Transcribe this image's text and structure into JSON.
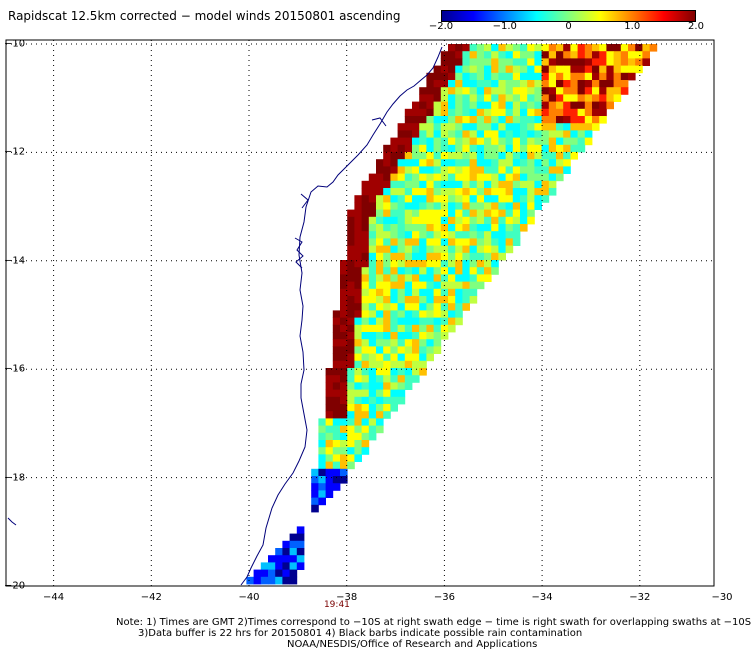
{
  "title": "Rapidscat 12.5km corrected − model winds 20150801 ascending",
  "colorbar": {
    "range": [
      -2.0,
      2.0
    ],
    "ticks": [
      {
        "label": "−2.0",
        "value": -2.0
      },
      {
        "label": "−1.0",
        "value": -1.0
      },
      {
        "label": "0",
        "value": 0.0
      },
      {
        "label": "1.0",
        "value": 1.0
      },
      {
        "label": "2.0",
        "value": 2.0
      }
    ],
    "colors": [
      "#00008f",
      "#0000ff",
      "#0080ff",
      "#00ffff",
      "#80ff80",
      "#ffff00",
      "#ff8000",
      "#ff0000",
      "#800000"
    ]
  },
  "map": {
    "lon_range": [
      -45,
      -30
    ],
    "lat_range": [
      -20,
      -10
    ],
    "lat_labels": [
      {
        "label": "−10",
        "value": -10
      },
      {
        "label": "−12",
        "value": -12
      },
      {
        "label": "−14",
        "value": -14
      },
      {
        "label": "−16",
        "value": -16
      },
      {
        "label": "−18",
        "value": -18
      },
      {
        "label": "−20",
        "value": -20
      }
    ],
    "lon_labels": [
      {
        "label": "−44",
        "value": -44
      },
      {
        "label": "−42",
        "value": -42
      },
      {
        "label": "−40",
        "value": -40
      },
      {
        "label": "−38",
        "value": -38
      },
      {
        "label": "−36",
        "value": -36
      },
      {
        "label": "−34",
        "value": -34
      },
      {
        "label": "−32",
        "value": -32
      },
      {
        "label": "−30",
        "value": -30
      }
    ],
    "pass_time": "19:41",
    "pass_time_lon": -38.2,
    "swath_corners": [
      [
        -40.2,
        -20.0
      ],
      [
        -38.0,
        -18.0
      ],
      [
        -31.6,
        -10.0
      ],
      [
        -35.9,
        -10.0
      ],
      [
        -37.9,
        -13.0
      ],
      [
        -39.0,
        -20.0
      ]
    ]
  },
  "notes": {
    "line1": "Note: 1) Times are GMT 2)Times correspond to −10S at right swath edge − time is right swath for overlapping swaths at −10S",
    "line2": "3)Data buffer is 22 hrs for 20150801 4) Black barbs indicate possible rain contamination",
    "line3": "NOAA/NESDIS/Office of Research and Applications"
  }
}
